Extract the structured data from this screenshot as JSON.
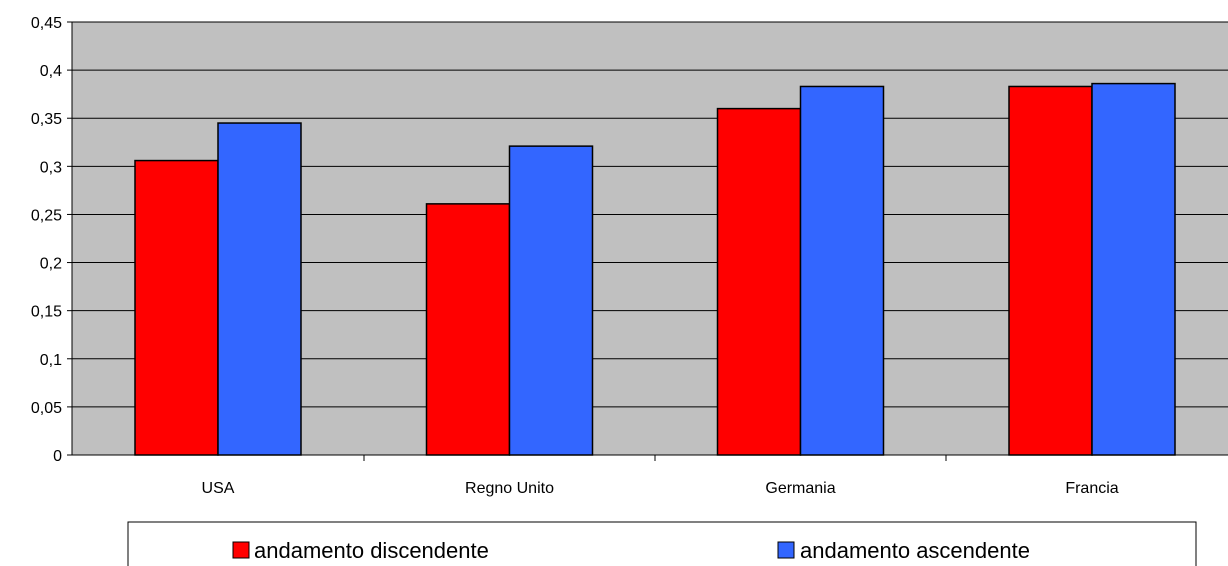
{
  "chart_data": {
    "type": "bar",
    "title": "",
    "xlabel": "",
    "ylabel": "",
    "categories": [
      "USA",
      "Regno Unito",
      "Germania",
      "Francia"
    ],
    "series": [
      {
        "name": "andamento discendente",
        "color": "#ff0000",
        "values": [
          0.306,
          0.261,
          0.36,
          0.383
        ]
      },
      {
        "name": "andamento ascendente",
        "color": "#3366ff",
        "values": [
          0.345,
          0.321,
          0.383,
          0.386
        ]
      }
    ],
    "ylim": [
      0,
      0.45
    ],
    "yticks": [
      "0",
      "0,05",
      "0,1",
      "0,15",
      "0,2",
      "0,25",
      "0,3",
      "0,35",
      "0,4",
      "0,45"
    ],
    "grid": true,
    "plot_background": "#c0c0c0",
    "legend": "bottom"
  }
}
